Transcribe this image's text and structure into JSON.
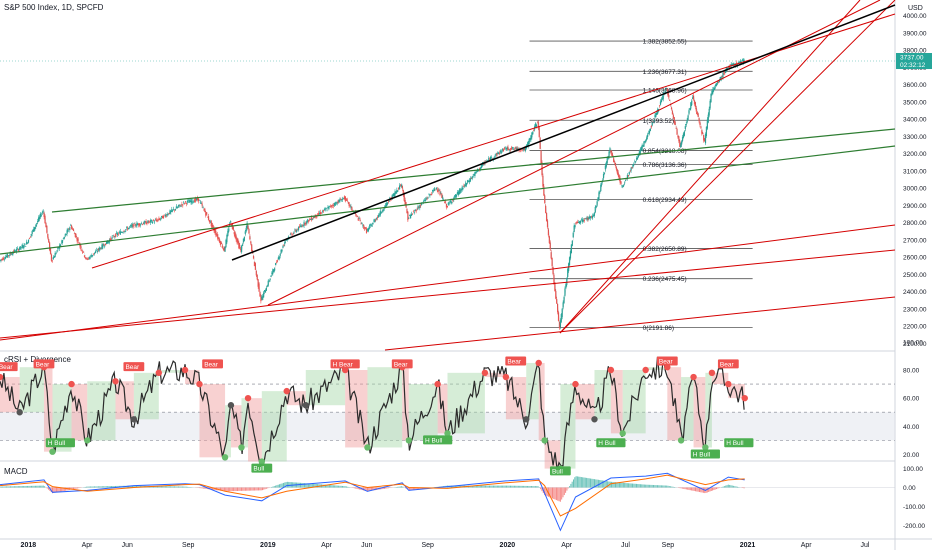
{
  "header": {
    "title": "S&P 500 Index, 1D, SPCFD",
    "currency": "USD",
    "price_tag": "3737.00",
    "countdown": "02:32:12"
  },
  "colors": {
    "candle_up": "#26a69a",
    "candle_down": "#ef5350",
    "trend_red": "#d40000",
    "trend_black": "#000000",
    "trend_green": "#2e7d32",
    "fib_line": "#555555",
    "price_tag_bg": "#26a69a",
    "rsi_line": "#2b2b2b",
    "rsi_sma": "#e57373",
    "macd_line": "#2962ff",
    "signal_line": "#ff6d00",
    "hist_up": "#26a69a",
    "hist_down": "#ef5350"
  },
  "chart_data": [
    {
      "type": "line",
      "title": "S&P 500 Index, 1D, SPCFD",
      "x_axis": {
        "type": "date",
        "tick_labels": [
          "2018",
          "Apr",
          "Jun",
          "Sep",
          "2019",
          "Apr",
          "Jun",
          "Sep",
          "2020",
          "Apr",
          "Jul",
          "Sep",
          "2021",
          "Apr",
          "Jul"
        ]
      },
      "y_axis": {
        "label": "USD",
        "range": [
          2100,
          4050
        ],
        "tick_labels": [
          "4000.00",
          "3900.00",
          "3800.00",
          "3700.00",
          "3600.00",
          "3500.00",
          "3400.00",
          "3300.00",
          "3200.00",
          "3100.00",
          "3000.00",
          "2900.00",
          "2800.00",
          "2700.00",
          "2600.00",
          "2500.00",
          "2400.00",
          "2300.00",
          "2200.00",
          "2100.00"
        ]
      },
      "series": [
        {
          "name": "S&P 500 Index",
          "x": [
            "2017-11-20",
            "2017-12-31",
            "2018-01-26",
            "2018-02-08",
            "2018-03-09",
            "2018-04-02",
            "2018-05-15",
            "2018-06-12",
            "2018-07-20",
            "2018-08-29",
            "2018-09-20",
            "2018-10-29",
            "2018-11-07",
            "2018-11-23",
            "2018-12-03",
            "2018-12-24",
            "2019-01-31",
            "2019-03-01",
            "2019-04-30",
            "2019-06-03",
            "2019-07-26",
            "2019-08-05",
            "2019-09-18",
            "2019-10-03",
            "2019-11-29",
            "2019-12-31",
            "2020-01-31",
            "2020-02-19",
            "2020-02-28",
            "2020-03-23",
            "2020-04-15",
            "2020-05-14",
            "2020-06-08",
            "2020-06-26",
            "2020-07-31",
            "2020-09-02",
            "2020-09-23",
            "2020-10-12",
            "2020-10-30",
            "2020-11-09",
            "2020-12-04",
            "2020-12-29"
          ],
          "y": [
            2580,
            2675,
            2872,
            2580,
            2785,
            2585,
            2725,
            2785,
            2815,
            2915,
            2935,
            2640,
            2810,
            2635,
            2790,
            2350,
            2705,
            2800,
            2945,
            2750,
            3025,
            2825,
            3005,
            2895,
            3145,
            3230,
            3225,
            3395,
            2955,
            2190,
            2795,
            2840,
            3230,
            3005,
            3270,
            3580,
            3235,
            3535,
            3265,
            3550,
            3700,
            3737
          ]
        }
      ],
      "levels": [
        {
          "label": "1.382(3852.55)",
          "value": 3852.55
        },
        {
          "label": "1.236(3677.31)",
          "value": 3677.31
        },
        {
          "label": "1.146(3568.96)",
          "value": 3568.96
        },
        {
          "label": "1(3393.52)",
          "value": 3393.52
        },
        {
          "label": "0.854(3218.08)",
          "value": 3218.08
        },
        {
          "label": "0.786(3136.36)",
          "value": 3136.36
        },
        {
          "label": "0.618(2934.49)",
          "value": 2934.49
        },
        {
          "label": "0.382(2650.89)",
          "value": 2650.89
        },
        {
          "label": "0.236(2475.45)",
          "value": 2475.45
        },
        {
          "label": "0(2191.86)",
          "value": 2191.86
        }
      ],
      "current_price": 3737.0,
      "grid": false,
      "legend": "top-left"
    },
    {
      "type": "line",
      "title": "cRSI + Divergence",
      "y_axis": {
        "range": [
          0,
          100
        ],
        "tick_labels": [
          "100.00",
          "80.00",
          "60.00",
          "40.00",
          "20.00"
        ]
      },
      "bands": [
        70,
        50,
        30
      ],
      "annotations": [
        "Bear",
        "H Bear",
        "Bull",
        "H Bull"
      ],
      "series": [
        {
          "name": "cRSI",
          "x": [
            "2017-11-20",
            "2017-12-20",
            "2018-01-26",
            "2018-02-08",
            "2018-03-09",
            "2018-04-02",
            "2018-05-15",
            "2018-06-12",
            "2018-07-20",
            "2018-08-29",
            "2018-09-20",
            "2018-10-29",
            "2018-11-07",
            "2018-11-23",
            "2018-12-03",
            "2018-12-24",
            "2019-01-31",
            "2019-03-01",
            "2019-04-30",
            "2019-06-03",
            "2019-07-26",
            "2019-08-05",
            "2019-09-18",
            "2019-10-03",
            "2019-11-29",
            "2019-12-31",
            "2020-01-31",
            "2020-02-19",
            "2020-02-28",
            "2020-03-23",
            "2020-04-15",
            "2020-05-14",
            "2020-06-08",
            "2020-06-26",
            "2020-07-31",
            "2020-09-02",
            "2020-09-23",
            "2020-10-12",
            "2020-10-30",
            "2020-11-09",
            "2020-12-04",
            "2020-12-29"
          ],
          "y": [
            75,
            50,
            82,
            22,
            70,
            30,
            72,
            45,
            78,
            80,
            70,
            18,
            55,
            25,
            60,
            15,
            65,
            55,
            80,
            25,
            82,
            30,
            70,
            35,
            78,
            75,
            45,
            85,
            30,
            10,
            70,
            45,
            80,
            35,
            80,
            82,
            30,
            75,
            25,
            78,
            70,
            60
          ]
        }
      ]
    },
    {
      "type": "line",
      "title": "MACD",
      "y_axis": {
        "range": [
          -230,
          110
        ],
        "tick_labels": [
          "100.00",
          "0.00",
          "-100.00",
          "-200.00"
        ]
      },
      "series": [
        {
          "name": "MACD",
          "x": [
            "2017-11-20",
            "2018-01-26",
            "2018-02-08",
            "2018-04-02",
            "2018-06-12",
            "2018-08-29",
            "2018-09-20",
            "2018-10-29",
            "2018-12-24",
            "2019-01-31",
            "2019-04-30",
            "2019-06-03",
            "2019-07-26",
            "2019-08-05",
            "2019-10-03",
            "2019-12-31",
            "2020-02-19",
            "2020-02-28",
            "2020-03-23",
            "2020-04-15",
            "2020-06-08",
            "2020-07-31",
            "2020-09-02",
            "2020-10-30",
            "2020-12-04",
            "2020-12-29"
          ],
          "y": [
            15,
            40,
            -25,
            -15,
            10,
            20,
            15,
            -40,
            -70,
            10,
            35,
            -20,
            25,
            -15,
            5,
            35,
            45,
            -30,
            -225,
            -50,
            50,
            60,
            75,
            -15,
            55,
            40
          ]
        },
        {
          "name": "Signal",
          "x": [
            "2017-11-20",
            "2018-01-26",
            "2018-02-08",
            "2018-04-02",
            "2018-06-12",
            "2018-08-29",
            "2018-09-20",
            "2018-10-29",
            "2018-12-24",
            "2019-01-31",
            "2019-04-30",
            "2019-06-03",
            "2019-07-26",
            "2019-08-05",
            "2019-10-03",
            "2019-12-31",
            "2020-02-19",
            "2020-02-28",
            "2020-03-23",
            "2020-04-15",
            "2020-06-08",
            "2020-07-31",
            "2020-09-02",
            "2020-10-30",
            "2020-12-04",
            "2020-12-29"
          ],
          "y": [
            10,
            30,
            5,
            -20,
            0,
            15,
            18,
            -20,
            -55,
            -20,
            28,
            0,
            18,
            0,
            -5,
            25,
            38,
            10,
            -150,
            -110,
            20,
            45,
            65,
            15,
            40,
            45
          ]
        }
      ]
    }
  ]
}
